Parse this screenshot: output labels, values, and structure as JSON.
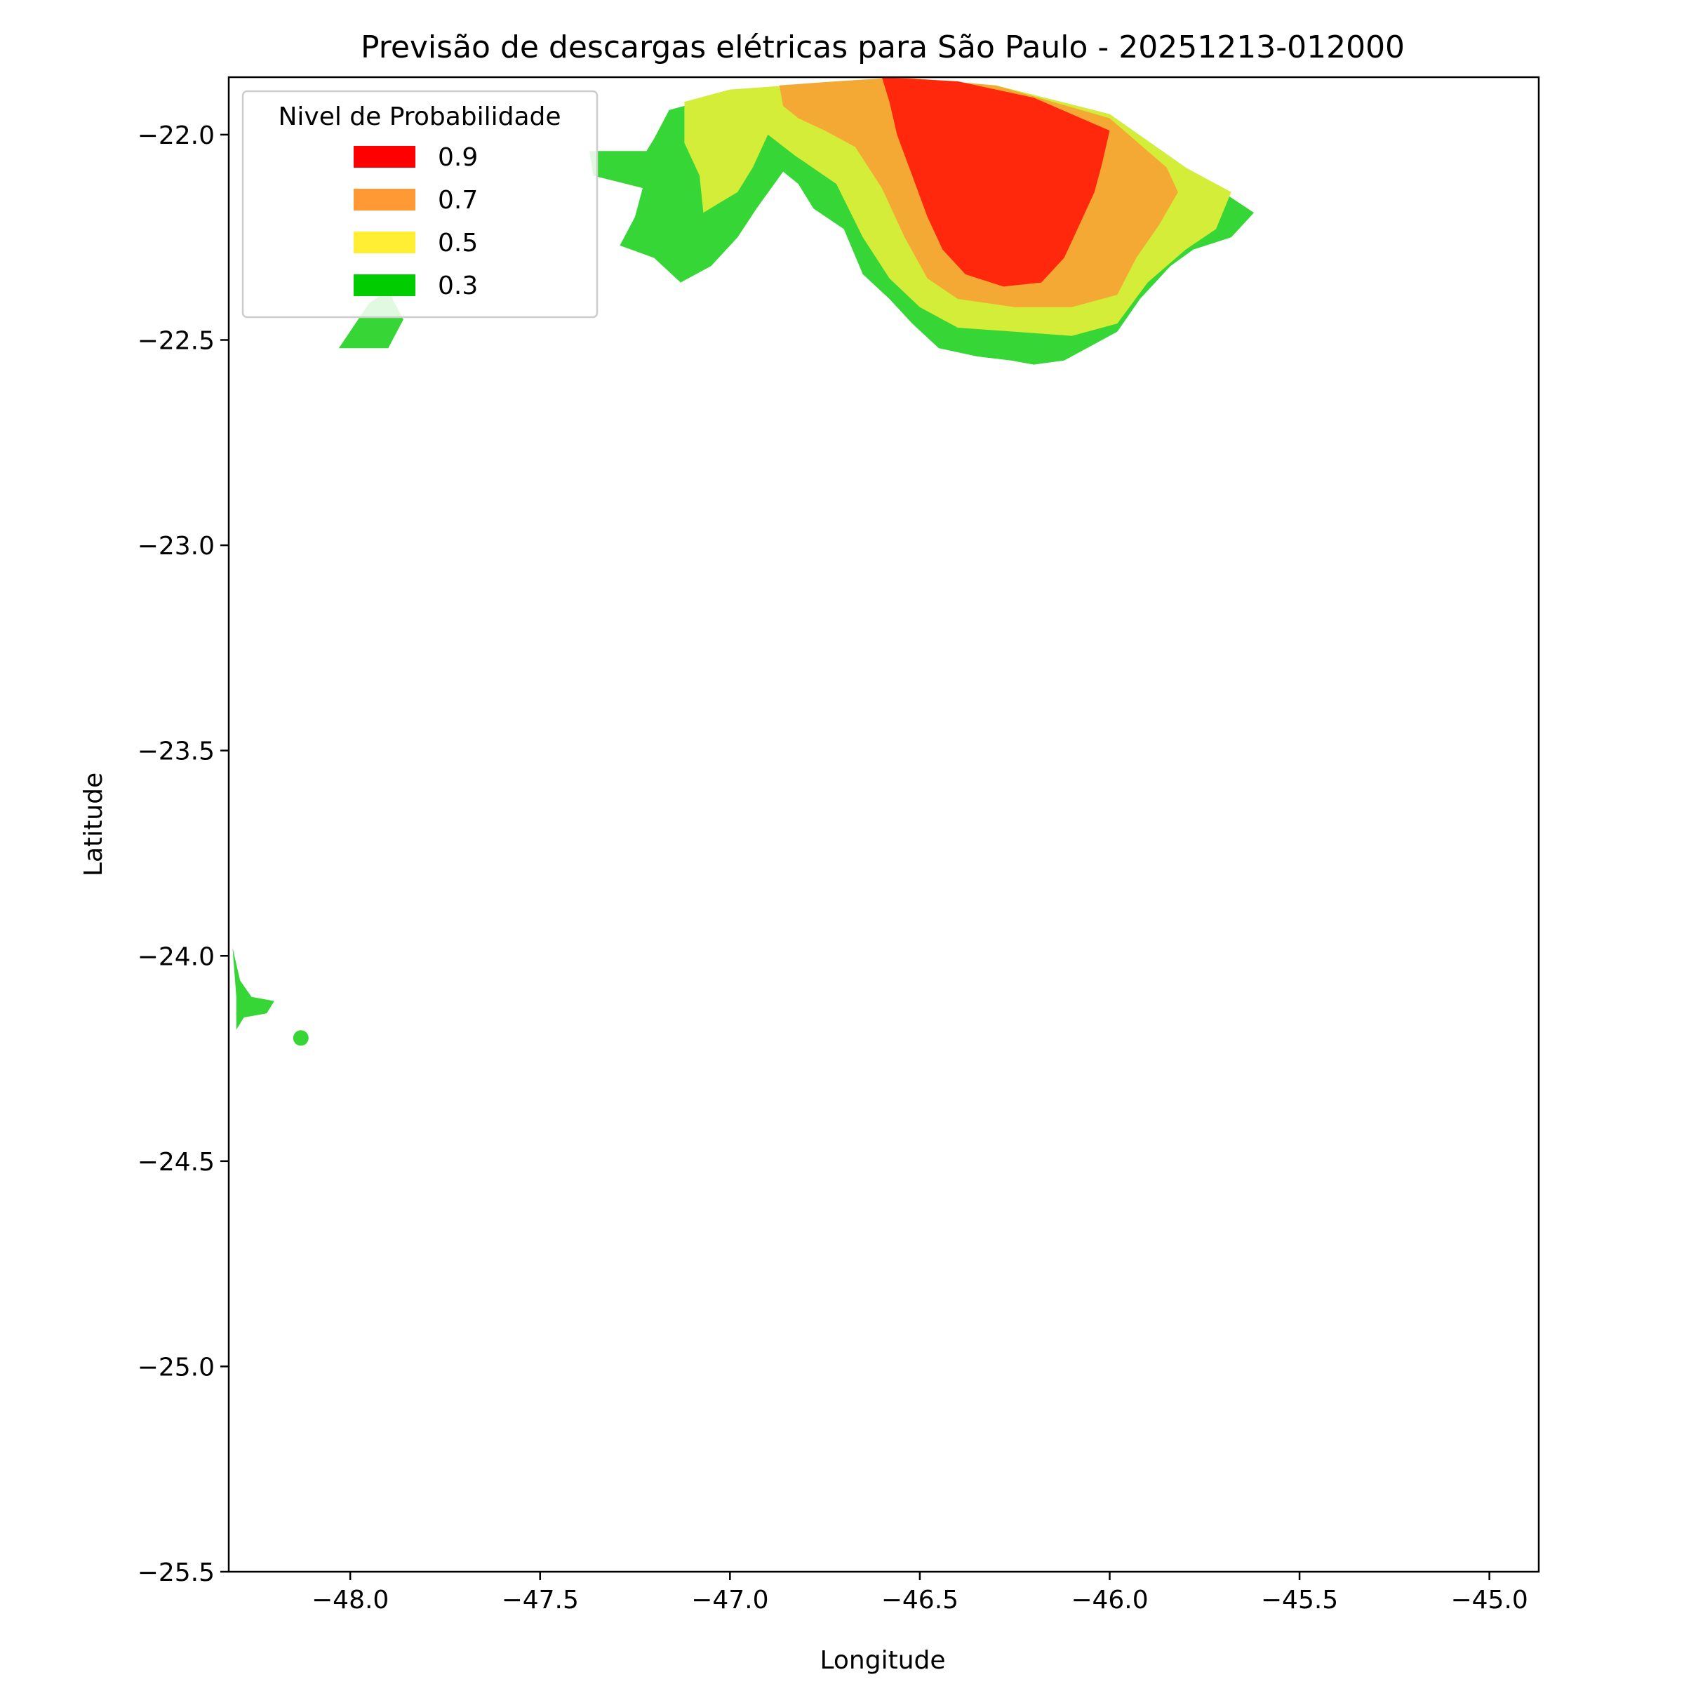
{
  "chart_data": {
    "type": "map",
    "title": "Previsão de descargas elétricas para São Paulo - 20251213-012000",
    "xlabel": "Longitude",
    "ylabel": "Latitude",
    "xlim": [
      -48.32,
      -44.87
    ],
    "ylim": [
      -25.5,
      -21.86
    ],
    "xticks": [
      -48.0,
      -47.5,
      -47.0,
      -46.5,
      -46.0,
      -45.5,
      -45.0
    ],
    "yticks": [
      -22.0,
      -22.5,
      -23.0,
      -23.5,
      -24.0,
      -24.5,
      -25.0,
      -25.5
    ],
    "grid": false,
    "legend": {
      "title": "Nivel de Probabilidade",
      "location": "top-left",
      "entries": [
        {
          "label": "0.9",
          "color": "#ff0000"
        },
        {
          "label": "0.7",
          "color": "#ff9933"
        },
        {
          "label": "0.5",
          "color": "#ffee33"
        },
        {
          "label": "0.3",
          "color": "#00cc00"
        }
      ]
    },
    "regions": [
      {
        "level": "0.3",
        "color": "#36d636",
        "points": [
          [
            -47.2,
            -22.01
          ],
          [
            -47.16,
            -21.94
          ],
          [
            -47.0,
            -21.9
          ],
          [
            -46.85,
            -21.88
          ],
          [
            -46.6,
            -21.87
          ],
          [
            -46.3,
            -21.88
          ],
          [
            -46.0,
            -21.95
          ],
          [
            -45.8,
            -22.08
          ],
          [
            -45.62,
            -22.19
          ],
          [
            -45.68,
            -22.25
          ],
          [
            -45.78,
            -22.28
          ],
          [
            -45.84,
            -22.32
          ],
          [
            -45.92,
            -22.4
          ],
          [
            -45.98,
            -22.48
          ],
          [
            -46.06,
            -22.52
          ],
          [
            -46.12,
            -22.55
          ],
          [
            -46.2,
            -22.56
          ],
          [
            -46.26,
            -22.55
          ],
          [
            -46.35,
            -22.54
          ],
          [
            -46.45,
            -22.52
          ],
          [
            -46.52,
            -22.46
          ],
          [
            -46.58,
            -22.4
          ],
          [
            -46.65,
            -22.34
          ],
          [
            -46.7,
            -22.23
          ],
          [
            -46.78,
            -22.18
          ],
          [
            -46.82,
            -22.12
          ],
          [
            -46.86,
            -22.09
          ],
          [
            -46.93,
            -22.18
          ],
          [
            -46.98,
            -22.25
          ],
          [
            -47.05,
            -22.32
          ],
          [
            -47.13,
            -22.36
          ],
          [
            -47.2,
            -22.3
          ],
          [
            -47.29,
            -22.27
          ],
          [
            -47.25,
            -22.2
          ],
          [
            -47.23,
            -22.13
          ],
          [
            -47.36,
            -22.1
          ],
          [
            -47.37,
            -22.04
          ],
          [
            -47.22,
            -22.04
          ]
        ]
      },
      {
        "level": "0.5",
        "color": "#d4ed38",
        "points": [
          [
            -47.12,
            -21.92
          ],
          [
            -47.0,
            -21.89
          ],
          [
            -46.85,
            -21.88
          ],
          [
            -46.6,
            -21.87
          ],
          [
            -46.3,
            -21.88
          ],
          [
            -46.0,
            -21.95
          ],
          [
            -45.8,
            -22.08
          ],
          [
            -45.68,
            -22.14
          ],
          [
            -45.72,
            -22.23
          ],
          [
            -45.8,
            -22.28
          ],
          [
            -45.9,
            -22.36
          ],
          [
            -45.98,
            -22.46
          ],
          [
            -46.1,
            -22.49
          ],
          [
            -46.25,
            -22.48
          ],
          [
            -46.4,
            -22.47
          ],
          [
            -46.5,
            -22.42
          ],
          [
            -46.58,
            -22.35
          ],
          [
            -46.65,
            -22.25
          ],
          [
            -46.72,
            -22.12
          ],
          [
            -46.83,
            -22.05
          ],
          [
            -46.9,
            -22.0
          ],
          [
            -46.94,
            -22.08
          ],
          [
            -46.98,
            -22.14
          ],
          [
            -47.07,
            -22.19
          ],
          [
            -47.08,
            -22.1
          ],
          [
            -47.12,
            -22.02
          ]
        ]
      },
      {
        "level": "0.7",
        "color": "#f5a935",
        "points": [
          [
            -46.87,
            -21.88
          ],
          [
            -46.72,
            -21.87
          ],
          [
            -46.55,
            -21.86
          ],
          [
            -46.3,
            -21.88
          ],
          [
            -46.0,
            -21.96
          ],
          [
            -45.85,
            -22.08
          ],
          [
            -45.82,
            -22.14
          ],
          [
            -45.87,
            -22.22
          ],
          [
            -45.93,
            -22.3
          ],
          [
            -45.98,
            -22.39
          ],
          [
            -46.1,
            -22.42
          ],
          [
            -46.25,
            -22.42
          ],
          [
            -46.4,
            -22.4
          ],
          [
            -46.48,
            -22.35
          ],
          [
            -46.54,
            -22.25
          ],
          [
            -46.6,
            -22.13
          ],
          [
            -46.67,
            -22.03
          ],
          [
            -46.75,
            -21.99
          ],
          [
            -46.82,
            -21.96
          ],
          [
            -46.86,
            -21.93
          ]
        ]
      },
      {
        "level": "0.9",
        "color": "#ff280d",
        "points": [
          [
            -46.6,
            -21.86
          ],
          [
            -46.4,
            -21.87
          ],
          [
            -46.2,
            -21.91
          ],
          [
            -46.0,
            -21.99
          ],
          [
            -46.02,
            -22.07
          ],
          [
            -46.04,
            -22.14
          ],
          [
            -46.08,
            -22.22
          ],
          [
            -46.12,
            -22.3
          ],
          [
            -46.18,
            -22.36
          ],
          [
            -46.28,
            -22.37
          ],
          [
            -46.38,
            -22.34
          ],
          [
            -46.44,
            -22.28
          ],
          [
            -46.48,
            -22.2
          ],
          [
            -46.52,
            -22.1
          ],
          [
            -46.56,
            -22.0
          ],
          [
            -46.58,
            -21.92
          ]
        ]
      },
      {
        "level": "0.3",
        "color": "#36d636",
        "points": [
          [
            -48.03,
            -22.52
          ],
          [
            -47.9,
            -22.52
          ],
          [
            -47.86,
            -22.45
          ],
          [
            -47.9,
            -22.38
          ],
          [
            -47.95,
            -22.41
          ]
        ]
      },
      {
        "level": "0.3",
        "color": "#36d636",
        "points": [
          [
            -48.31,
            -23.98
          ],
          [
            -48.29,
            -24.06
          ],
          [
            -48.26,
            -24.1
          ],
          [
            -48.2,
            -24.11
          ],
          [
            -48.22,
            -24.14
          ],
          [
            -48.28,
            -24.15
          ],
          [
            -48.3,
            -24.18
          ],
          [
            -48.3,
            -24.1
          ]
        ]
      }
    ],
    "points": [
      {
        "lon": -48.13,
        "lat": -24.2,
        "color": "#36d636"
      }
    ]
  }
}
